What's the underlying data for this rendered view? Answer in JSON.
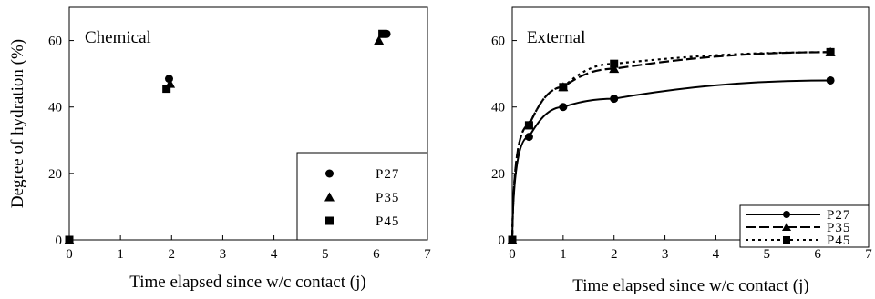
{
  "chart_data": [
    {
      "type": "scatter",
      "annotation": "Chemical",
      "xlabel": "Time elapsed since w/c contact (j)",
      "ylabel": "Degree of hydration (%)",
      "xlim": [
        0,
        7
      ],
      "ylim": [
        0,
        70
      ],
      "xticks": [
        "0",
        "1",
        "2",
        "3",
        "4",
        "5",
        "6",
        "7"
      ],
      "yticks": [
        "0",
        "20",
        "40",
        "60"
      ],
      "grid": false,
      "legend_position": "bottom-right",
      "series": [
        {
          "name": "P27",
          "marker": "circle",
          "x": [
            0,
            1.95,
            6.2
          ],
          "y": [
            0,
            48.5,
            62
          ]
        },
        {
          "name": "P35",
          "marker": "triangle",
          "x": [
            0,
            1.97,
            6.05
          ],
          "y": [
            0,
            47,
            60
          ]
        },
        {
          "name": "P45",
          "marker": "square",
          "x": [
            0,
            1.9,
            6.12
          ],
          "y": [
            0,
            45.5,
            62
          ]
        }
      ]
    },
    {
      "type": "line",
      "annotation": "External",
      "xlabel": "Time elapsed since w/c contact (j)",
      "ylabel": "",
      "xlim": [
        0,
        7
      ],
      "ylim": [
        0,
        70
      ],
      "xticks": [
        "0",
        "1",
        "2",
        "3",
        "4",
        "5",
        "6",
        "7"
      ],
      "yticks": [
        "0",
        "20",
        "40",
        "60"
      ],
      "grid": false,
      "legend_position": "bottom-right",
      "series": [
        {
          "name": "P27",
          "marker": "circle",
          "linestyle": "solid",
          "x": [
            0,
            0.33,
            1,
            2,
            6.25
          ],
          "y": [
            0,
            31,
            40,
            42.5,
            48
          ]
        },
        {
          "name": "P35",
          "marker": "triangle",
          "linestyle": "dashed",
          "x": [
            0,
            0.33,
            1,
            2,
            6.25
          ],
          "y": [
            0,
            34.5,
            46,
            51.5,
            56.5
          ]
        },
        {
          "name": "P45",
          "marker": "square",
          "linestyle": "dotted",
          "x": [
            0,
            0.33,
            1,
            2,
            6.25
          ],
          "y": [
            0,
            34.5,
            46,
            53,
            56.5
          ]
        }
      ]
    }
  ]
}
